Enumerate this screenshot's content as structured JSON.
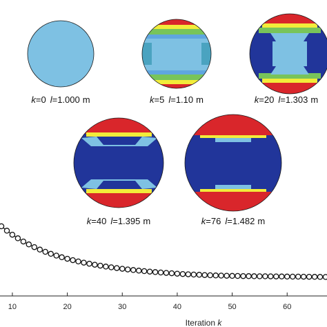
{
  "figure": {
    "snapshots": [
      {
        "k": "0",
        "l": "1.000",
        "unit": "m"
      },
      {
        "k": "5",
        "l": "1.10",
        "unit": "m"
      },
      {
        "k": "20",
        "l": "1.303",
        "unit": "m"
      },
      {
        "k": "40",
        "l": "1.395",
        "unit": "m"
      },
      {
        "k": "76",
        "l": "1.482",
        "unit": "m"
      }
    ],
    "k_symbol": "k",
    "l_symbol": "l",
    "colors": {
      "light_blue": "#7ec1e3",
      "dark_blue": "#21359a",
      "red": "#d9262b",
      "yellow": "#f2ec3a",
      "green": "#78c45a",
      "mid_blue": "#5fa6df"
    }
  },
  "chart_data": {
    "type": "line",
    "xlabel": "Iteration k",
    "xlabel_text": "Iteration ",
    "xlabel_var": "k",
    "xlim": [
      8,
      67
    ],
    "x_ticks": [
      "10",
      "20",
      "30",
      "40",
      "50",
      "60"
    ],
    "grid": false,
    "marker": "open-circle",
    "series": [
      {
        "x": [
          8,
          9,
          10,
          11,
          12,
          13,
          14,
          15,
          16,
          17,
          18,
          19,
          20,
          21,
          22,
          23,
          24,
          25,
          26,
          27,
          28,
          29,
          30,
          31,
          32,
          33,
          34,
          35,
          36,
          37,
          38,
          39,
          40,
          41,
          42,
          43,
          44,
          45,
          46,
          47,
          48,
          49,
          50,
          51,
          52,
          53,
          54,
          55,
          56,
          57,
          58,
          59,
          60,
          61,
          62,
          63,
          64,
          65,
          66,
          67
        ],
        "y": [
          1.2,
          1.124,
          1.056,
          0.994,
          0.938,
          0.888,
          0.842,
          0.8,
          0.762,
          0.728,
          0.697,
          0.668,
          0.642,
          0.618,
          0.596,
          0.576,
          0.557,
          0.54,
          0.524,
          0.509,
          0.495,
          0.482,
          0.47,
          0.459,
          0.449,
          0.439,
          0.43,
          0.422,
          0.414,
          0.406,
          0.399,
          0.393,
          0.387,
          0.381,
          0.376,
          0.371,
          0.367,
          0.363,
          0.359,
          0.356,
          0.353,
          0.351,
          0.349,
          0.347,
          0.345,
          0.344,
          0.343,
          0.342,
          0.341,
          0.34,
          0.339,
          0.338,
          0.337,
          0.336,
          0.335,
          0.334,
          0.333,
          0.332,
          0.331,
          0.33
        ]
      }
    ]
  }
}
